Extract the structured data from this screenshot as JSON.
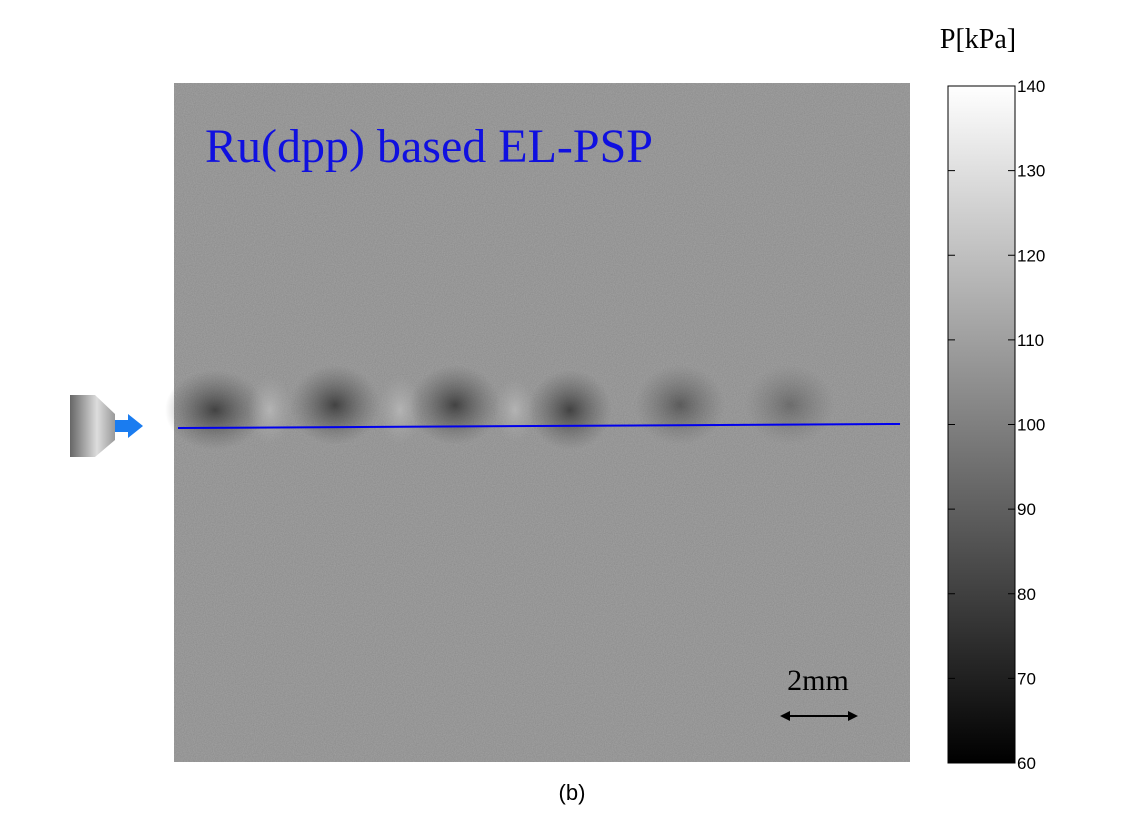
{
  "figure": {
    "image_title": "Ru(dpp) based EL-PSP",
    "scale_bar_label": "2mm",
    "caption": "(b)",
    "colorbar": {
      "label": "P[kPa]",
      "lim": [
        60,
        140
      ],
      "ticks": [
        60,
        70,
        80,
        90,
        100,
        110,
        120,
        130,
        140
      ]
    }
  }
}
